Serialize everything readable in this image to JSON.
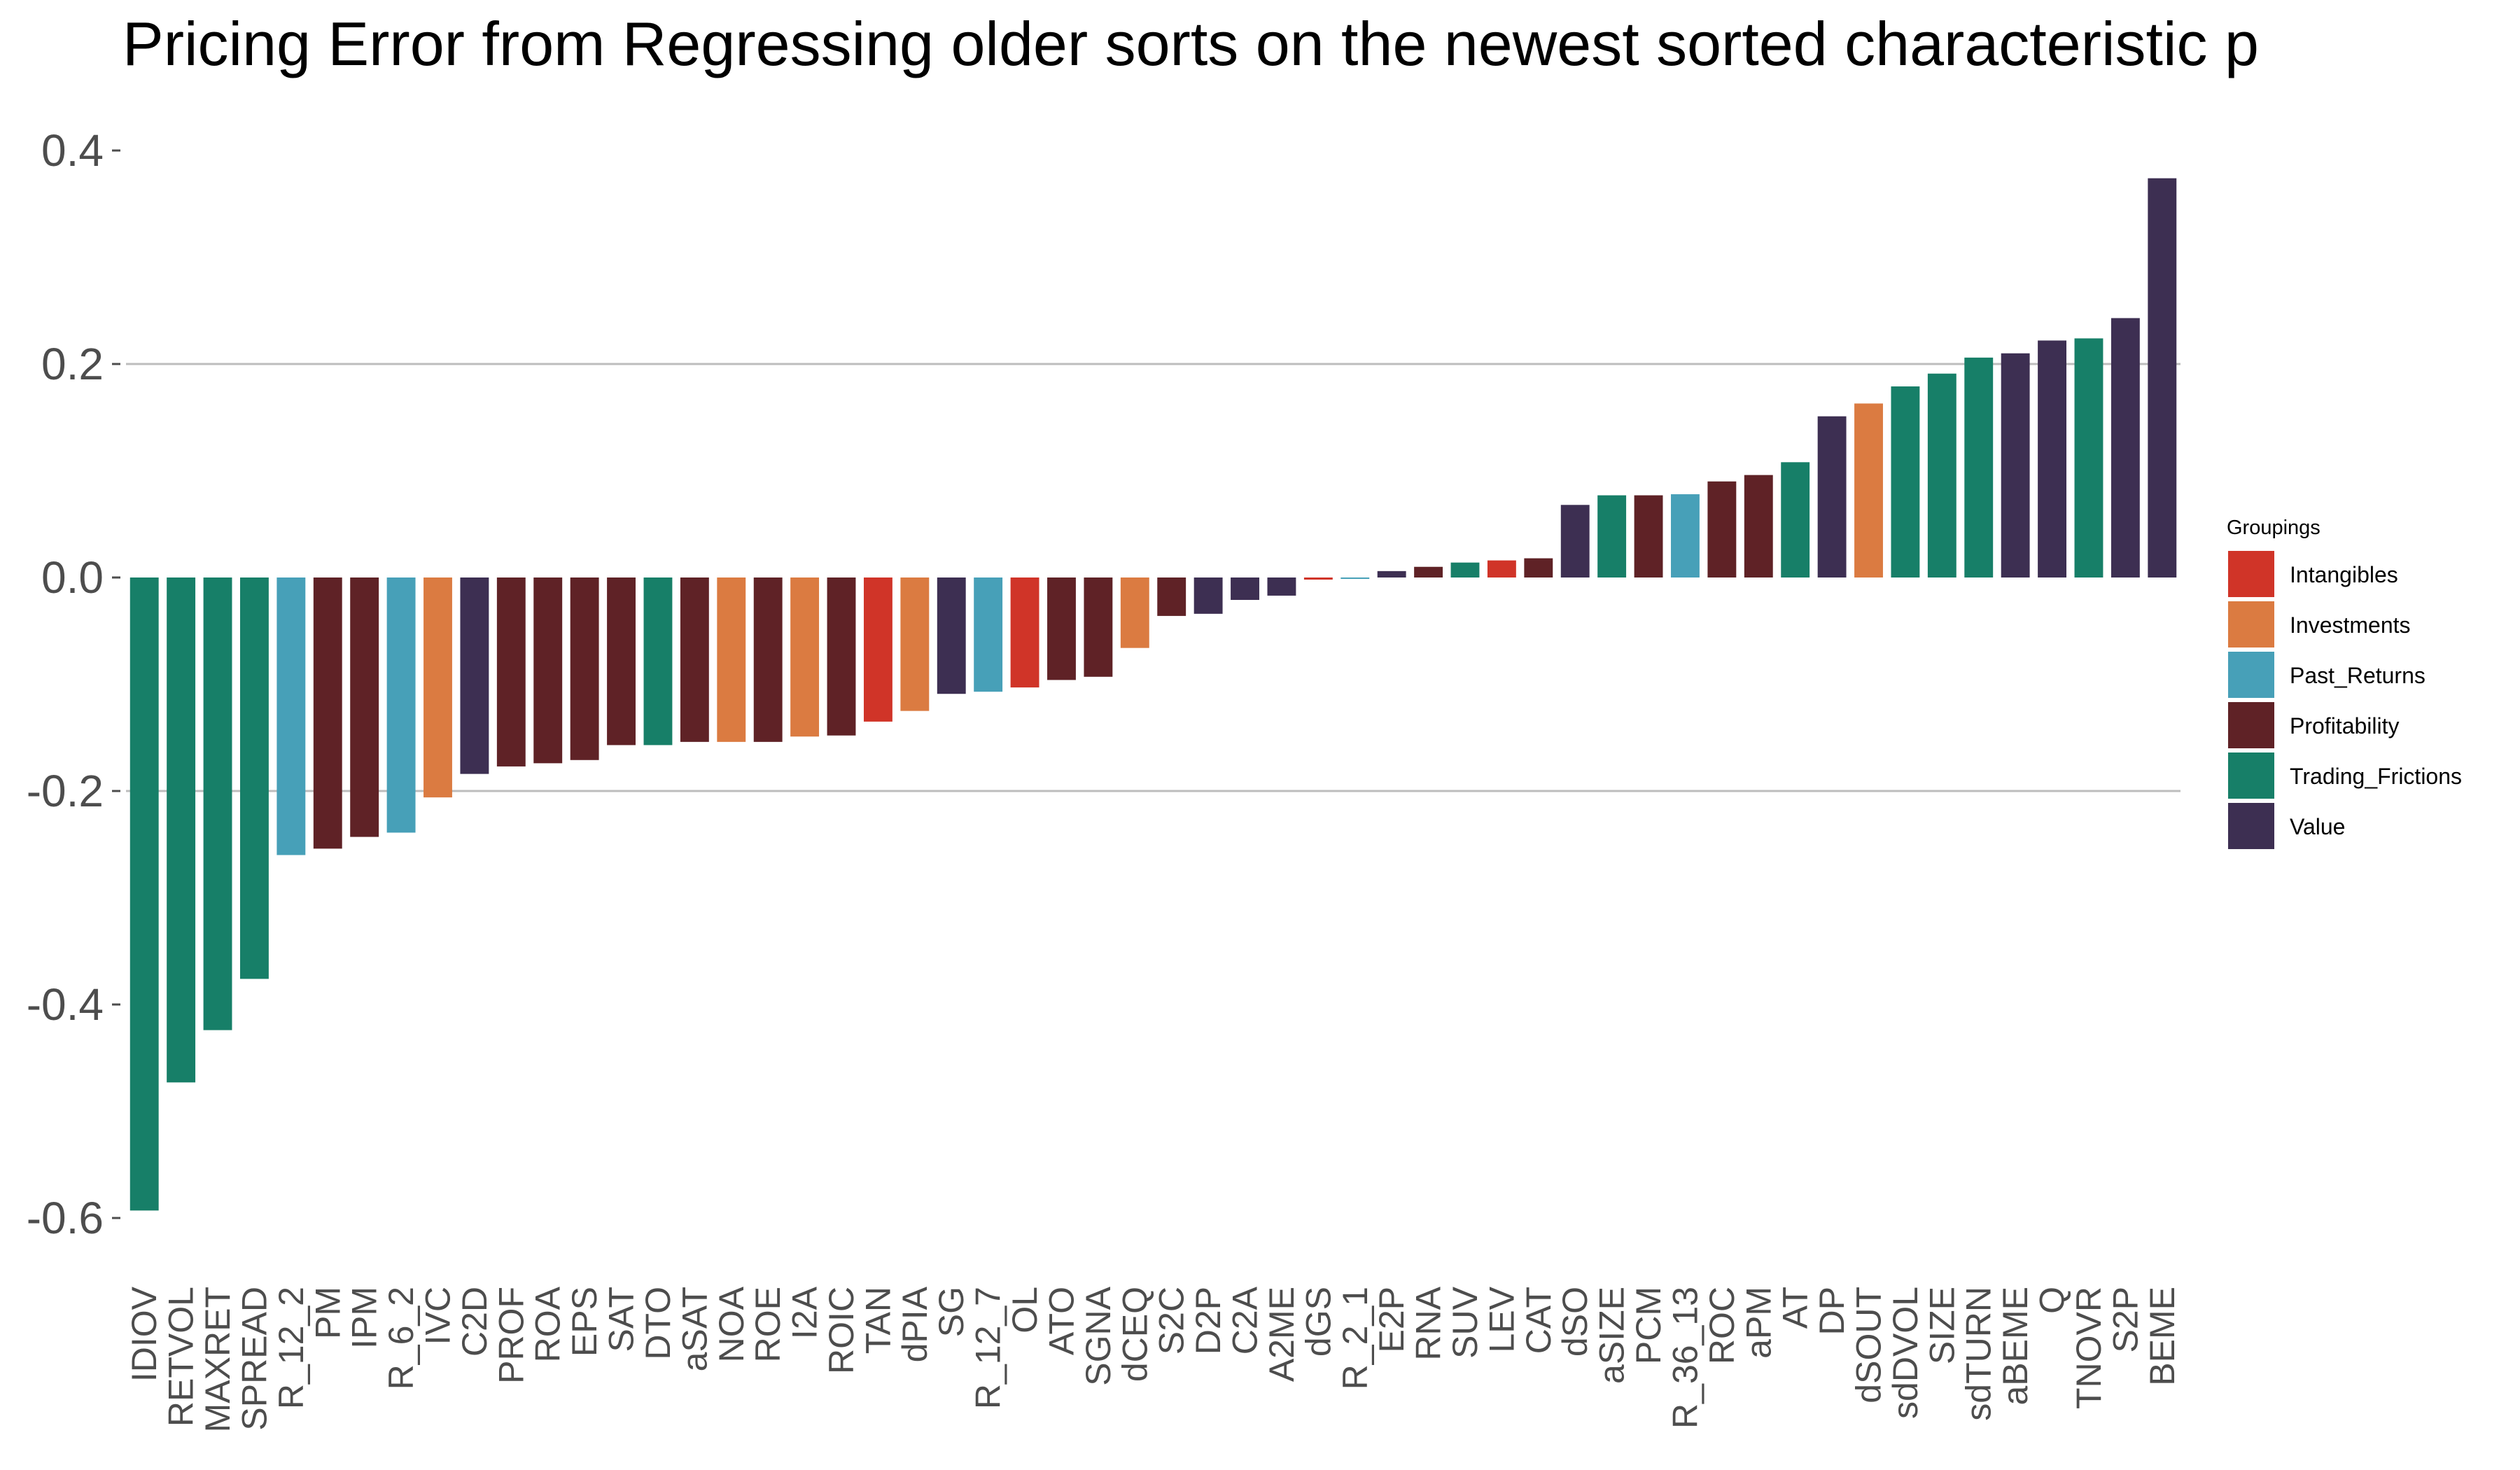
{
  "chart_data": {
    "type": "bar",
    "title": "Pricing Error from Regressing older sorts on the newest sorted characteristic p",
    "xlabel": "",
    "ylabel": "",
    "ylim": [
      -0.62,
      0.4
    ],
    "yticks": [
      0.4,
      0.2,
      0.0,
      -0.2,
      -0.4,
      -0.6
    ],
    "ytick_labels": [
      "0.4",
      "0.2",
      "0.0",
      "-0.2",
      "-0.4",
      "-0.6"
    ],
    "gridlines_at": [
      0.2,
      -0.2
    ],
    "legend": {
      "title": "Groupings",
      "position": "right",
      "entries": [
        {
          "name": "Intangibles",
          "color": "#d03428"
        },
        {
          "name": "Investments",
          "color": "#db7b41"
        },
        {
          "name": "Past_Returns",
          "color": "#47a0b8"
        },
        {
          "name": "Profitability",
          "color": "#5f2226"
        },
        {
          "name": "Trading_Frictions",
          "color": "#177f68"
        },
        {
          "name": "Value",
          "color": "#3d2f52"
        }
      ]
    },
    "categories": [
      "IDIOV",
      "RETVOL",
      "MAXRET",
      "SPREAD",
      "R_12_2",
      "PM",
      "IPM",
      "R_6_2",
      "IVC",
      "C2D",
      "PROF",
      "ROA",
      "EPS",
      "SAT",
      "DTO",
      "aSAT",
      "NOA",
      "ROE",
      "I2A",
      "ROIC",
      "TAN",
      "dPIA",
      "SG",
      "R_12_7",
      "OL",
      "ATO",
      "SGNA",
      "dCEQ",
      "S2C",
      "D2P",
      "C2A",
      "A2ME",
      "dGS",
      "R_2_1",
      "E2P",
      "RNA",
      "SUV",
      "LEV",
      "CAT",
      "dSO",
      "aSIZE",
      "PCM",
      "R_36_13",
      "ROC",
      "aPM",
      "AT",
      "DP",
      "dSOUT",
      "sdDVOL",
      "SIZE",
      "sdTURN",
      "aBEME",
      "Q",
      "TNOVR",
      "S2P",
      "BEME"
    ],
    "values": [
      -0.593,
      -0.473,
      -0.424,
      -0.376,
      -0.26,
      -0.254,
      -0.243,
      -0.239,
      -0.206,
      -0.184,
      -0.177,
      -0.174,
      -0.171,
      -0.157,
      -0.157,
      -0.154,
      -0.154,
      -0.154,
      -0.149,
      -0.148,
      -0.135,
      -0.125,
      -0.109,
      -0.107,
      -0.103,
      -0.096,
      -0.093,
      -0.066,
      -0.036,
      -0.034,
      -0.021,
      -0.017,
      -0.002,
      -0.001,
      0.006,
      0.01,
      0.014,
      0.016,
      0.018,
      0.068,
      0.077,
      0.077,
      0.078,
      0.09,
      0.096,
      0.108,
      0.151,
      0.163,
      0.179,
      0.191,
      0.206,
      0.21,
      0.222,
      0.224,
      0.243,
      0.374
    ],
    "groups": [
      "Trading_Frictions",
      "Trading_Frictions",
      "Trading_Frictions",
      "Trading_Frictions",
      "Past_Returns",
      "Profitability",
      "Profitability",
      "Past_Returns",
      "Investments",
      "Value",
      "Profitability",
      "Profitability",
      "Profitability",
      "Profitability",
      "Trading_Frictions",
      "Profitability",
      "Investments",
      "Profitability",
      "Investments",
      "Profitability",
      "Intangibles",
      "Investments",
      "Value",
      "Past_Returns",
      "Intangibles",
      "Profitability",
      "Profitability",
      "Investments",
      "Profitability",
      "Value",
      "Value",
      "Value",
      "Intangibles",
      "Past_Returns",
      "Value",
      "Profitability",
      "Trading_Frictions",
      "Intangibles",
      "Profitability",
      "Value",
      "Trading_Frictions",
      "Profitability",
      "Past_Returns",
      "Profitability",
      "Profitability",
      "Trading_Frictions",
      "Value",
      "Investments",
      "Trading_Frictions",
      "Trading_Frictions",
      "Trading_Frictions",
      "Value",
      "Value",
      "Trading_Frictions",
      "Value",
      "Value"
    ]
  }
}
